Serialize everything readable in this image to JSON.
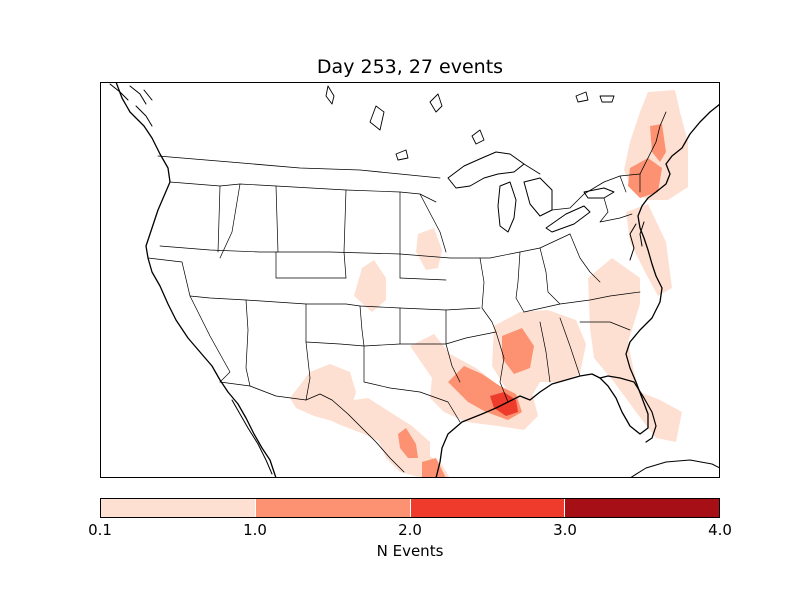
{
  "title": "Day 253, 27 events",
  "colorbar": {
    "label": "N Events",
    "ticks": [
      "0.1",
      "1.0",
      "2.0",
      "3.0",
      "4.0"
    ],
    "bins": [
      {
        "range": "0.1-1.0",
        "color": "#fee0d2"
      },
      {
        "range": "1.0-2.0",
        "color": "#fc9272"
      },
      {
        "range": "2.0-3.0",
        "color": "#ef3b2c"
      },
      {
        "range": "3.0-4.0",
        "color": "#a50f15"
      }
    ]
  },
  "map": {
    "region": "North America (conterminous United States)",
    "features": [
      "coastlines",
      "country-borders",
      "state-borders",
      "lakes"
    ]
  },
  "event_regions": [
    {
      "area": "Maine / New England",
      "level": "0.1-1.0"
    },
    {
      "area": "Maine coast",
      "level": "1.0-2.0"
    },
    {
      "area": "New York / Massachusetts",
      "level": "1.0-2.0"
    },
    {
      "area": "Mid-Atlantic coast",
      "level": "0.1-1.0"
    },
    {
      "area": "Iowa / Illinois border",
      "level": "0.1-1.0"
    },
    {
      "area": "Kansas / Nebraska",
      "level": "0.1-1.0"
    },
    {
      "area": "Carolinas / Georgia",
      "level": "0.1-1.0"
    },
    {
      "area": "Florida peninsula",
      "level": "0.1-1.0"
    },
    {
      "area": "Mississippi / Alabama",
      "level": "0.1-1.0"
    },
    {
      "area": "Mississippi",
      "level": "1.0-2.0"
    },
    {
      "area": "Texas / Louisiana Gulf coast",
      "level": "0.1-1.0"
    },
    {
      "area": "Louisiana / East Texas",
      "level": "1.0-2.0"
    },
    {
      "area": "Southeast Louisiana",
      "level": "2.0-3.0"
    },
    {
      "area": "New Mexico / West Texas",
      "level": "0.1-1.0"
    },
    {
      "area": "Northeast Mexico",
      "level": "0.1-1.0"
    },
    {
      "area": "Northeast Mexico",
      "level": "1.0-2.0"
    }
  ]
}
